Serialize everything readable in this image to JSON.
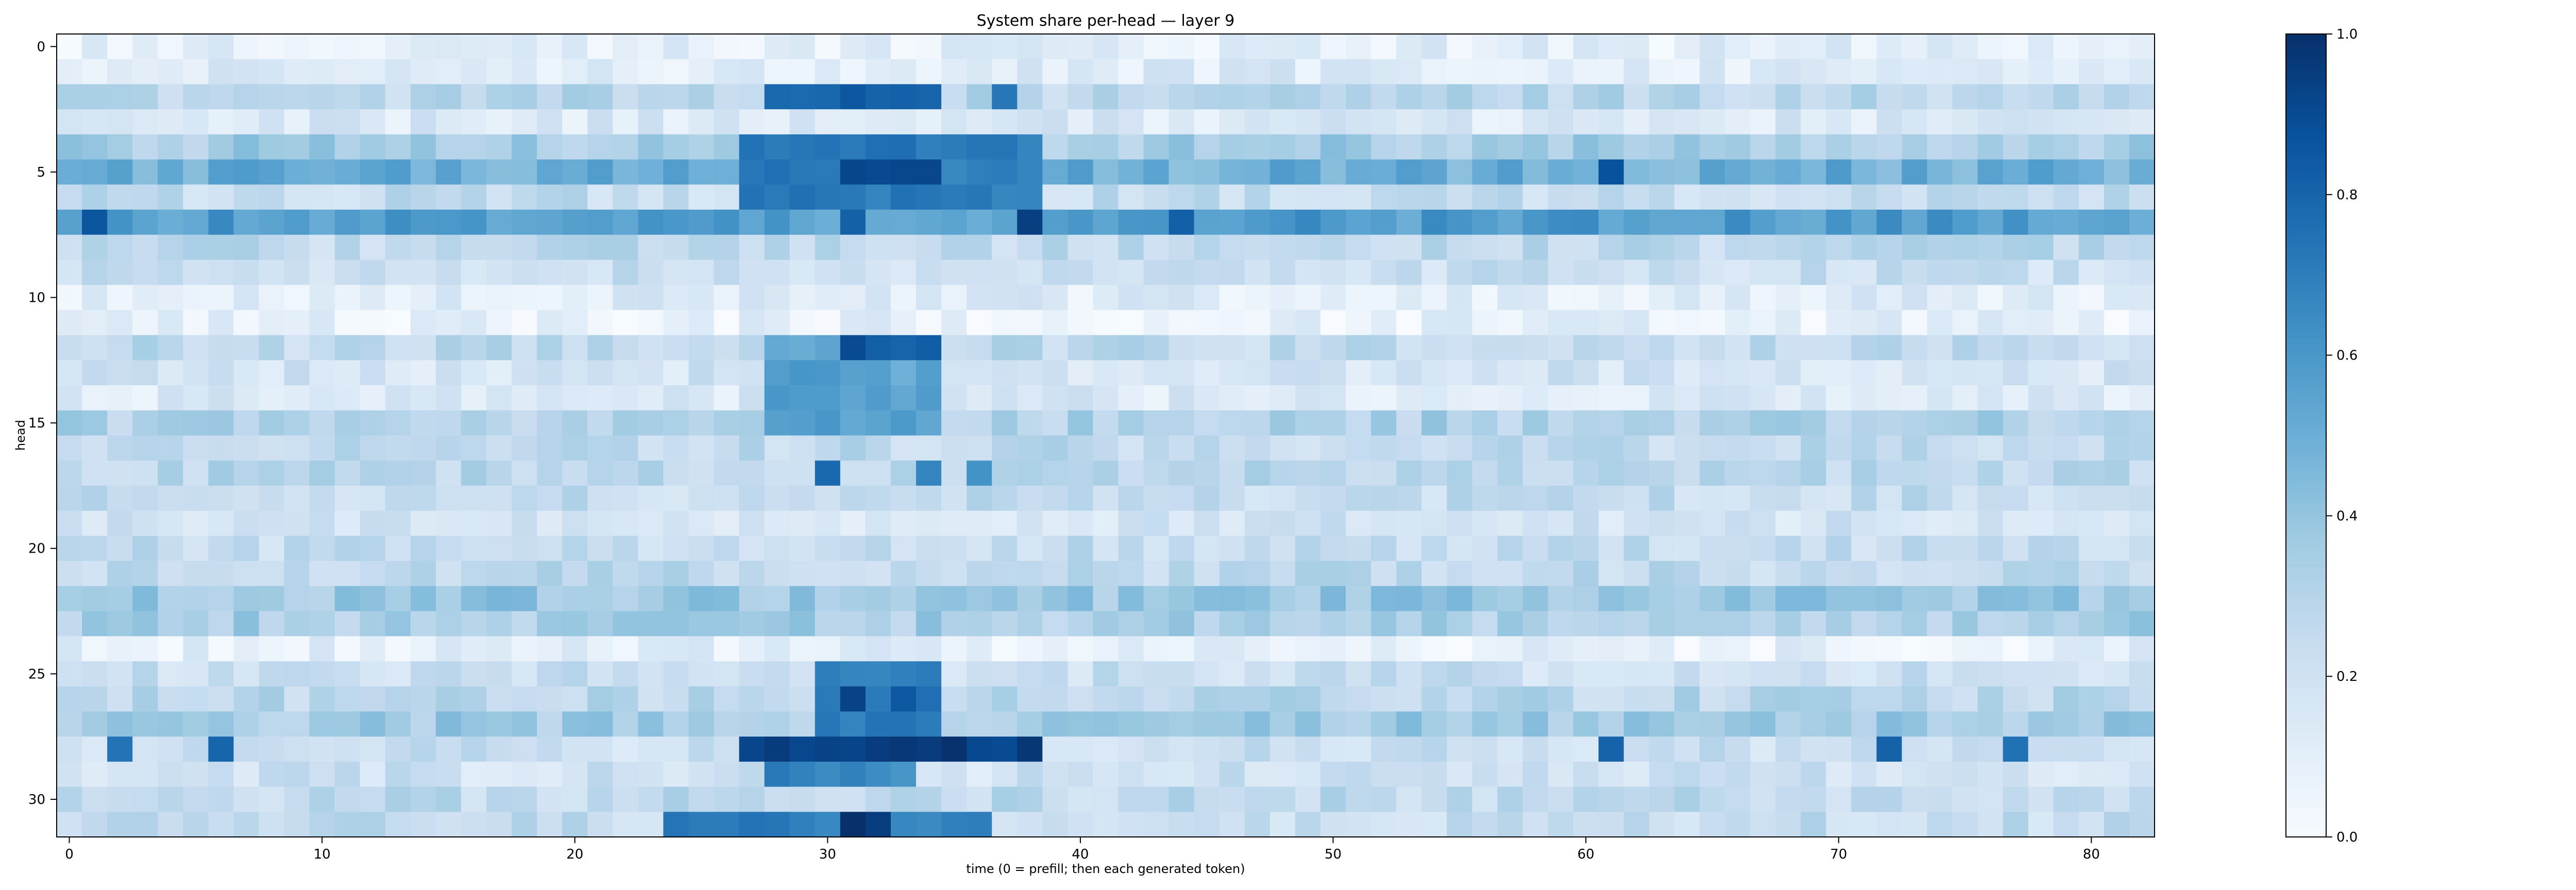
{
  "chart_data": {
    "type": "heatmap",
    "title": "System share per-head — layer 9",
    "xlabel": "time (0 = prefill; then each generated token)",
    "ylabel": "head",
    "rows": 32,
    "cols": 83,
    "xticks": [
      0,
      10,
      20,
      30,
      40,
      50,
      60,
      70,
      80
    ],
    "yticks": [
      0,
      5,
      10,
      15,
      20,
      25,
      30
    ],
    "xlim": [
      -0.5,
      82.5
    ],
    "ylim": [
      31.5,
      -0.5
    ],
    "colormap": "Blues",
    "color_min": "#f7fbff",
    "color_max": "#08306b",
    "colorbar": {
      "vmin": 0.0,
      "vmax": 1.0,
      "ticks": [
        0.0,
        0.2,
        0.4,
        0.6,
        0.8,
        1.0
      ],
      "tick_labels": [
        "0.0",
        "0.2",
        "0.4",
        "0.6",
        "0.8",
        "1.0"
      ]
    },
    "row_base_values": [
      0.1,
      0.13,
      0.28,
      0.14,
      0.35,
      0.5,
      0.24,
      0.58,
      0.26,
      0.22,
      0.12,
      0.08,
      0.26,
      0.18,
      0.14,
      0.32,
      0.26,
      0.28,
      0.24,
      0.18,
      0.24,
      0.26,
      0.38,
      0.34,
      0.09,
      0.22,
      0.28,
      0.36,
      0.22,
      0.2,
      0.26,
      0.24
    ],
    "hotspots": [
      {
        "rows": [
          2,
          2
        ],
        "cols": [
          28,
          34
        ],
        "value": 0.8
      },
      {
        "rows": [
          2,
          2
        ],
        "cols": [
          37,
          37
        ],
        "value": 0.78
      },
      {
        "rows": [
          4,
          6
        ],
        "cols": [
          27,
          38
        ],
        "value": 0.72
      },
      {
        "rows": [
          5,
          5
        ],
        "cols": [
          31,
          34
        ],
        "value": 0.88
      },
      {
        "rows": [
          7,
          7
        ],
        "cols": [
          1,
          1
        ],
        "value": 0.82
      },
      {
        "rows": [
          7,
          7
        ],
        "cols": [
          38,
          38
        ],
        "value": 0.92
      },
      {
        "rows": [
          7,
          7
        ],
        "cols": [
          31,
          31
        ],
        "value": 0.78
      },
      {
        "rows": [
          7,
          7
        ],
        "cols": [
          44,
          44
        ],
        "value": 0.8
      },
      {
        "rows": [
          5,
          5
        ],
        "cols": [
          61,
          61
        ],
        "value": 0.84
      },
      {
        "rows": [
          12,
          12
        ],
        "cols": [
          31,
          34
        ],
        "value": 0.84
      },
      {
        "rows": [
          12,
          15
        ],
        "cols": [
          28,
          34
        ],
        "value": 0.55
      },
      {
        "rows": [
          17,
          17
        ],
        "cols": [
          30,
          30
        ],
        "value": 0.76
      },
      {
        "rows": [
          17,
          17
        ],
        "cols": [
          34,
          34
        ],
        "value": 0.72
      },
      {
        "rows": [
          17,
          17
        ],
        "cols": [
          36,
          36
        ],
        "value": 0.66
      },
      {
        "rows": [
          25,
          27
        ],
        "cols": [
          30,
          34
        ],
        "value": 0.7
      },
      {
        "rows": [
          26,
          26
        ],
        "cols": [
          31,
          31
        ],
        "value": 0.94
      },
      {
        "rows": [
          26,
          26
        ],
        "cols": [
          33,
          33
        ],
        "value": 0.9
      },
      {
        "rows": [
          28,
          28
        ],
        "cols": [
          27,
          38
        ],
        "value": 0.95
      },
      {
        "rows": [
          29,
          29
        ],
        "cols": [
          28,
          33
        ],
        "value": 0.66
      },
      {
        "rows": [
          31,
          31
        ],
        "cols": [
          24,
          36
        ],
        "value": 0.7
      },
      {
        "rows": [
          31,
          31
        ],
        "cols": [
          31,
          32
        ],
        "value": 0.96
      },
      {
        "rows": [
          28,
          28
        ],
        "cols": [
          2,
          2
        ],
        "value": 0.78
      },
      {
        "rows": [
          28,
          28
        ],
        "cols": [
          6,
          6
        ],
        "value": 0.8
      },
      {
        "rows": [
          28,
          28
        ],
        "cols": [
          61,
          61
        ],
        "value": 0.8
      },
      {
        "rows": [
          28,
          28
        ],
        "cols": [
          72,
          72
        ],
        "value": 0.76
      },
      {
        "rows": [
          28,
          28
        ],
        "cols": [
          77,
          77
        ],
        "value": 0.8
      }
    ]
  }
}
